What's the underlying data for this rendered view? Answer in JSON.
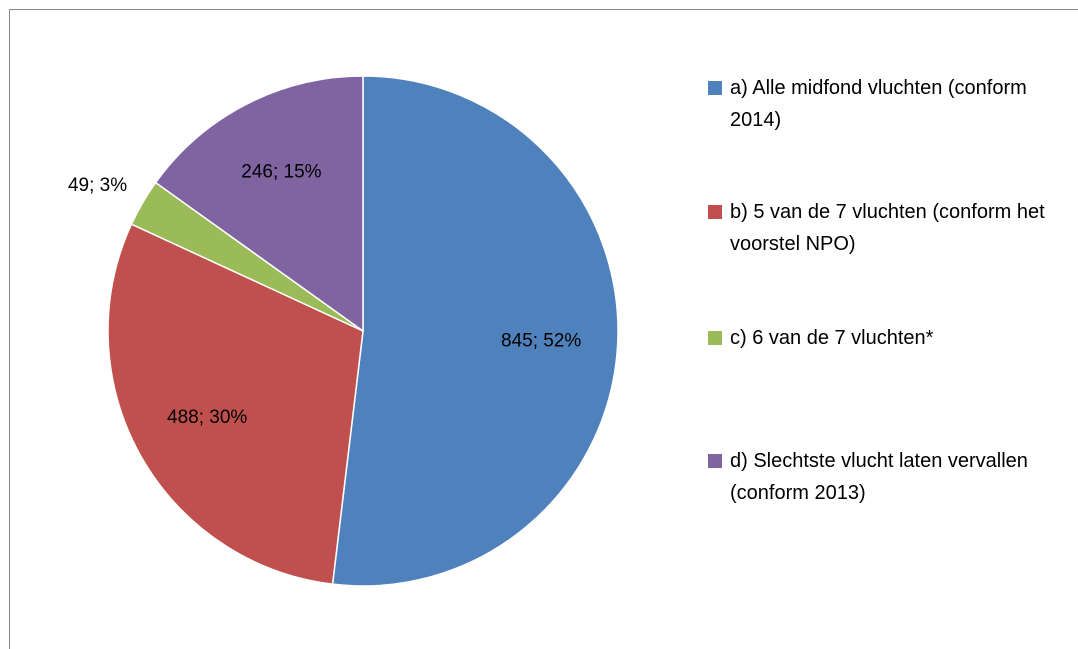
{
  "chart_data": {
    "type": "pie",
    "categories": [
      "a) Alle midfond vluchten (conform 2014)",
      "b) 5 van de 7 vluchten (conform het voorstel NPO)",
      "c) 6 van de 7 vluchten*",
      "d) Slechtste vlucht laten vervallen (conform 2013)"
    ],
    "values": [
      845,
      488,
      49,
      246
    ],
    "value_labels": [
      "845; 52%",
      "488; 30%",
      "49; 3%",
      "246; 15%"
    ],
    "colors": [
      "#4f81bd",
      "#c0504d",
      "#9bbb59",
      "#8064a2"
    ],
    "legend": "right"
  }
}
